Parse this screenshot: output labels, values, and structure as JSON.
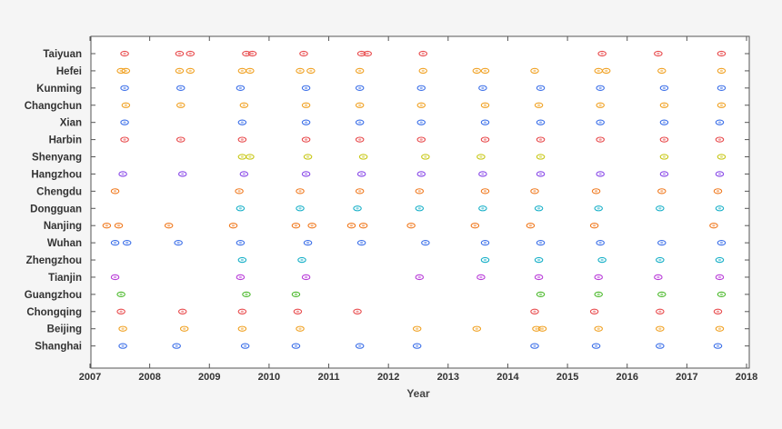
{
  "chart_data": {
    "type": "scatter",
    "xlabel": "Year",
    "ylabel": "",
    "xlim": [
      2007,
      2018
    ],
    "x_ticks": [
      "2007",
      "2008",
      "2009",
      "2010",
      "2011",
      "2012",
      "2013",
      "2014",
      "2015",
      "2016",
      "2017",
      "2018"
    ],
    "grid": false,
    "legend": "none",
    "series": [
      {
        "category": "Taiyuan",
        "color": "#e8494b",
        "x": [
          2007.58,
          2008.5,
          2008.68,
          2009.62,
          2009.72,
          2010.58,
          2011.55,
          2011.65,
          2012.58,
          2015.58,
          2016.52,
          2017.58
        ]
      },
      {
        "category": "Hefei",
        "color": "#f0a020",
        "x": [
          2007.52,
          2007.6,
          2008.5,
          2008.68,
          2009.55,
          2009.68,
          2010.52,
          2010.7,
          2011.52,
          2012.58,
          2013.48,
          2013.62,
          2014.45,
          2015.52,
          2015.65,
          2016.58,
          2017.58
        ]
      },
      {
        "category": "Kunming",
        "color": "#3a6ee8",
        "x": [
          2007.58,
          2008.52,
          2009.52,
          2010.62,
          2011.52,
          2012.55,
          2013.58,
          2014.55,
          2015.55,
          2016.62,
          2017.58
        ]
      },
      {
        "category": "Changchun",
        "color": "#f0a020",
        "x": [
          2007.6,
          2008.52,
          2009.58,
          2010.62,
          2011.52,
          2012.55,
          2013.62,
          2014.52,
          2015.55,
          2016.62,
          2017.58
        ]
      },
      {
        "category": "Xian",
        "color": "#3a6ee8",
        "x": [
          2007.58,
          2009.55,
          2010.62,
          2011.52,
          2012.55,
          2013.62,
          2014.55,
          2015.55,
          2016.62,
          2017.55
        ]
      },
      {
        "category": "Harbin",
        "color": "#e8494b",
        "x": [
          2007.58,
          2008.52,
          2009.55,
          2010.62,
          2011.52,
          2012.55,
          2013.62,
          2014.55,
          2015.55,
          2016.62,
          2017.55
        ]
      },
      {
        "category": "Shenyang",
        "color": "#c8c818",
        "x": [
          2009.55,
          2009.68,
          2010.65,
          2011.58,
          2012.62,
          2013.55,
          2014.55,
          2016.62,
          2017.58
        ]
      },
      {
        "category": "Hangzhou",
        "color": "#8a4ae8",
        "x": [
          2007.55,
          2008.55,
          2009.58,
          2010.62,
          2011.55,
          2012.55,
          2013.58,
          2014.55,
          2015.55,
          2016.62,
          2017.55
        ]
      },
      {
        "category": "Chengdu",
        "color": "#f07a20",
        "x": [
          2007.42,
          2009.5,
          2010.52,
          2011.52,
          2012.52,
          2013.62,
          2014.45,
          2015.48,
          2016.58,
          2017.52
        ]
      },
      {
        "category": "Dongguan",
        "color": "#18b0c8",
        "x": [
          2009.52,
          2010.52,
          2011.48,
          2012.52,
          2013.58,
          2014.52,
          2015.52,
          2016.55,
          2017.55
        ]
      },
      {
        "category": "Nanjing",
        "color": "#f07a20",
        "x": [
          2007.28,
          2007.48,
          2008.32,
          2009.4,
          2010.45,
          2010.72,
          2011.38,
          2011.58,
          2012.38,
          2013.45,
          2014.38,
          2015.45,
          2017.45
        ]
      },
      {
        "category": "Wuhan",
        "color": "#3a6ee8",
        "x": [
          2007.42,
          2007.62,
          2008.48,
          2009.52,
          2010.65,
          2011.55,
          2012.62,
          2013.62,
          2014.55,
          2015.55,
          2016.58,
          2017.58
        ]
      },
      {
        "category": "Zhengzhou",
        "color": "#18b0c8",
        "x": [
          2009.55,
          2010.55,
          2013.62,
          2014.52,
          2015.58,
          2016.55,
          2017.55
        ]
      },
      {
        "category": "Tianjin",
        "color": "#b83ad8",
        "x": [
          2007.42,
          2009.52,
          2010.62,
          2012.52,
          2013.55,
          2014.52,
          2015.52,
          2016.52,
          2017.55
        ]
      },
      {
        "category": "Guangzhou",
        "color": "#48b828",
        "x": [
          2007.52,
          2009.62,
          2010.45,
          2014.55,
          2015.52,
          2016.58,
          2017.58
        ]
      },
      {
        "category": "Chongqing",
        "color": "#e8494b",
        "x": [
          2007.52,
          2008.55,
          2009.55,
          2010.48,
          2011.48,
          2014.45,
          2015.45,
          2016.55,
          2017.52
        ]
      },
      {
        "category": "Beijing",
        "color": "#f0a020",
        "x": [
          2007.55,
          2008.58,
          2009.55,
          2010.52,
          2012.48,
          2013.48,
          2014.48,
          2014.58,
          2015.52,
          2016.55,
          2017.55
        ]
      },
      {
        "category": "Shanghai",
        "color": "#3a6ee8",
        "x": [
          2007.55,
          2008.45,
          2009.6,
          2010.45,
          2011.52,
          2012.48,
          2014.45,
          2015.48,
          2016.55,
          2017.52
        ]
      }
    ]
  }
}
